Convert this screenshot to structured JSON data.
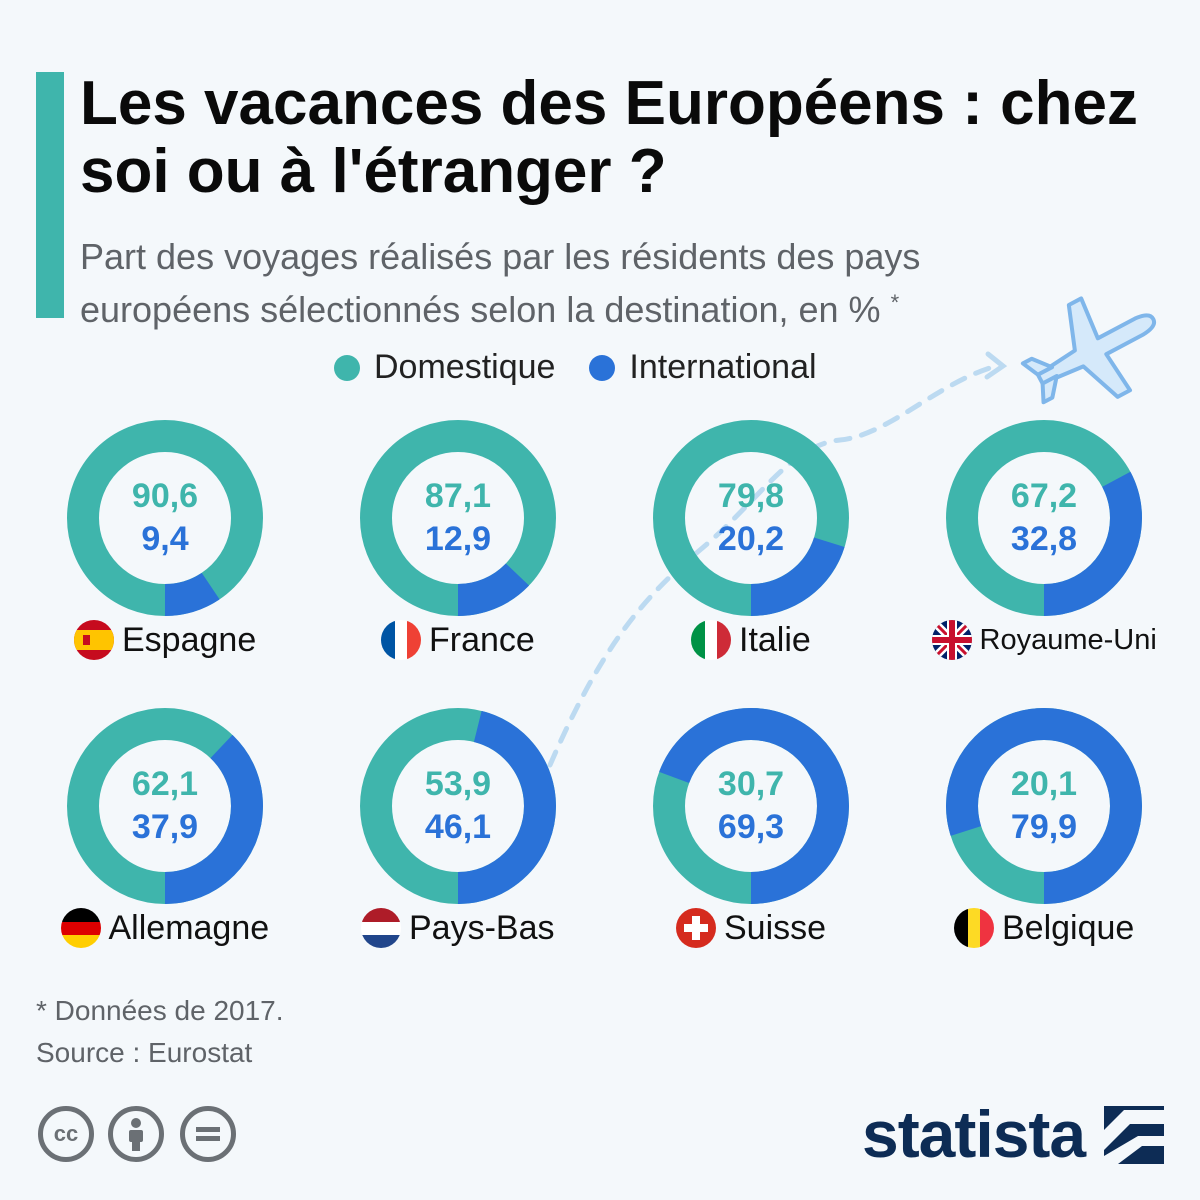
{
  "header": {
    "title": "Les vacances des Européens : chez soi ou à l'étranger ?",
    "subtitle": "Part des voyages réalisés par les résidents des pays européens sélectionnés selon la destination, en %",
    "subtitle_mark": "*"
  },
  "colors": {
    "domestic": "#3fb5ac",
    "international": "#2a72d8",
    "accent": "#3fb5ac",
    "brand": "#0d2c55"
  },
  "legend": {
    "domestic": "Domestique",
    "international": "International"
  },
  "chart_data": {
    "type": "donut",
    "series_names": [
      "Domestique",
      "International"
    ],
    "categories": [
      "Espagne",
      "France",
      "Italie",
      "Royaume-Uni",
      "Allemagne",
      "Pays-Bas",
      "Suisse",
      "Belgique"
    ],
    "domestic": [
      90.6,
      87.1,
      79.8,
      67.2,
      62.1,
      53.9,
      30.7,
      20.1
    ],
    "international": [
      9.4,
      12.9,
      20.2,
      32.8,
      37.9,
      46.1,
      69.3,
      79.9
    ],
    "domestic_labels": [
      "90,6",
      "87,1",
      "79,8",
      "67,2",
      "62,1",
      "53,9",
      "30,7",
      "20,1"
    ],
    "international_labels": [
      "9,4",
      "12,9",
      "20,2",
      "32,8",
      "37,9",
      "46,1",
      "69,3",
      "79,9"
    ]
  },
  "footer": {
    "note": "* Données de 2017.",
    "source": "Source : Eurostat",
    "brand": "statista"
  }
}
